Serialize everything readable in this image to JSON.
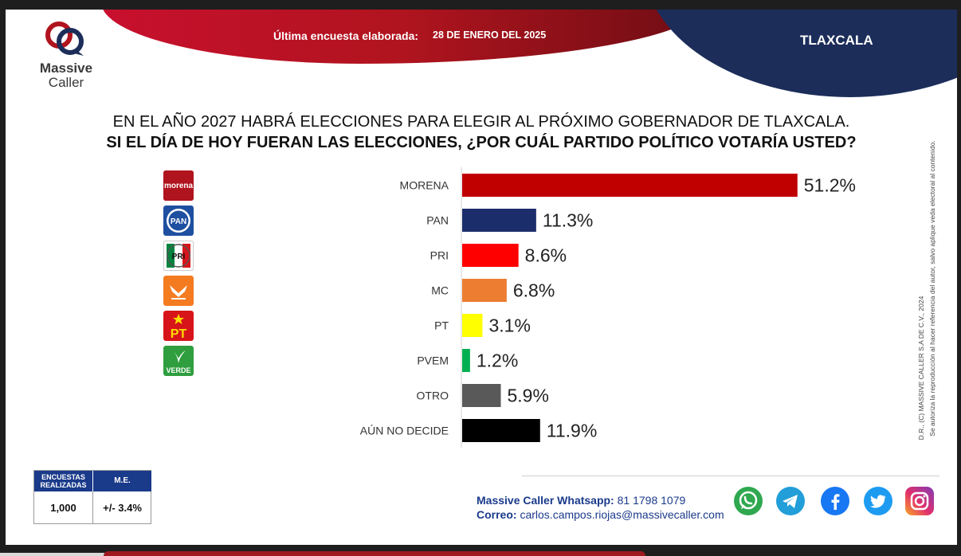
{
  "header": {
    "brand_line1": "Massive",
    "brand_line2": "Caller",
    "survey_label": "Última encuesta elaborada:",
    "survey_date": "28 DE ENERO DEL 2025",
    "region": "TLAXCALA"
  },
  "question": {
    "line1": "EN EL AÑO 2027 HABRÁ ELECCIONES PARA ELEGIR AL PRÓXIMO GOBERNADOR DE TLAXCALA.",
    "line2": "SI EL DÍA DE HOY FUERAN LAS ELECCIONES, ¿POR CUÁL PARTIDO POLÍTICO VOTARÍA USTED?"
  },
  "chart_data": {
    "type": "bar",
    "orientation": "horizontal",
    "categories": [
      "MORENA",
      "PAN",
      "PRI",
      "MC",
      "PT",
      "PVEM",
      "OTRO",
      "AÚN NO DECIDE"
    ],
    "values": [
      51.2,
      11.3,
      8.6,
      6.8,
      3.1,
      1.2,
      5.9,
      11.9
    ],
    "value_labels": [
      "51.2%",
      "11.3%",
      "8.6%",
      "6.8%",
      "3.1%",
      "1.2%",
      "5.9%",
      "11.9%"
    ],
    "colors": [
      "#c00000",
      "#1c2d6b",
      "#ff0000",
      "#ed7d31",
      "#ffff00",
      "#00b050",
      "#595959",
      "#000000"
    ],
    "xlim": [
      0,
      55
    ],
    "grid": false,
    "legend": "none"
  },
  "party_logos": [
    {
      "icon": "morena-logo",
      "text": "morena",
      "color": "#b0141e"
    },
    {
      "icon": "pan-logo",
      "text": "PAN",
      "color": "#1f4fa0"
    },
    {
      "icon": "pri-logo",
      "text": "PRI",
      "color": "#00843d"
    },
    {
      "icon": "mc-logo",
      "text": "",
      "color": "#f47b20"
    },
    {
      "icon": "pt-logo",
      "text": "PT",
      "color": "#d7141a"
    },
    {
      "icon": "pvem-logo",
      "text": "VERDE",
      "color": "#2e9e3e"
    }
  ],
  "stats_box": {
    "surveys_label": "ENCUESTAS REALIZADAS",
    "surveys_value": "1,000",
    "margin_label": "M.E.",
    "margin_value": "+/- 3.4%"
  },
  "contact": {
    "whatsapp_label": "Massive Caller Whatsapp:",
    "whatsapp_value": "81 1798 1079",
    "email_label": "Correo:",
    "email_value": "carlos.campos.riojas@massivecaller.com"
  },
  "social_icons": [
    "whatsapp-icon",
    "telegram-icon",
    "facebook-icon",
    "twitter-icon",
    "instagram-icon"
  ],
  "side_note": {
    "line1": "D.R., (C) MASSIVE CALLER S.A DE C.V., 2024",
    "line2": "Se autoriza la reproducción al hacer referencia del autor, salvo aplique veda electoral al contenido."
  }
}
